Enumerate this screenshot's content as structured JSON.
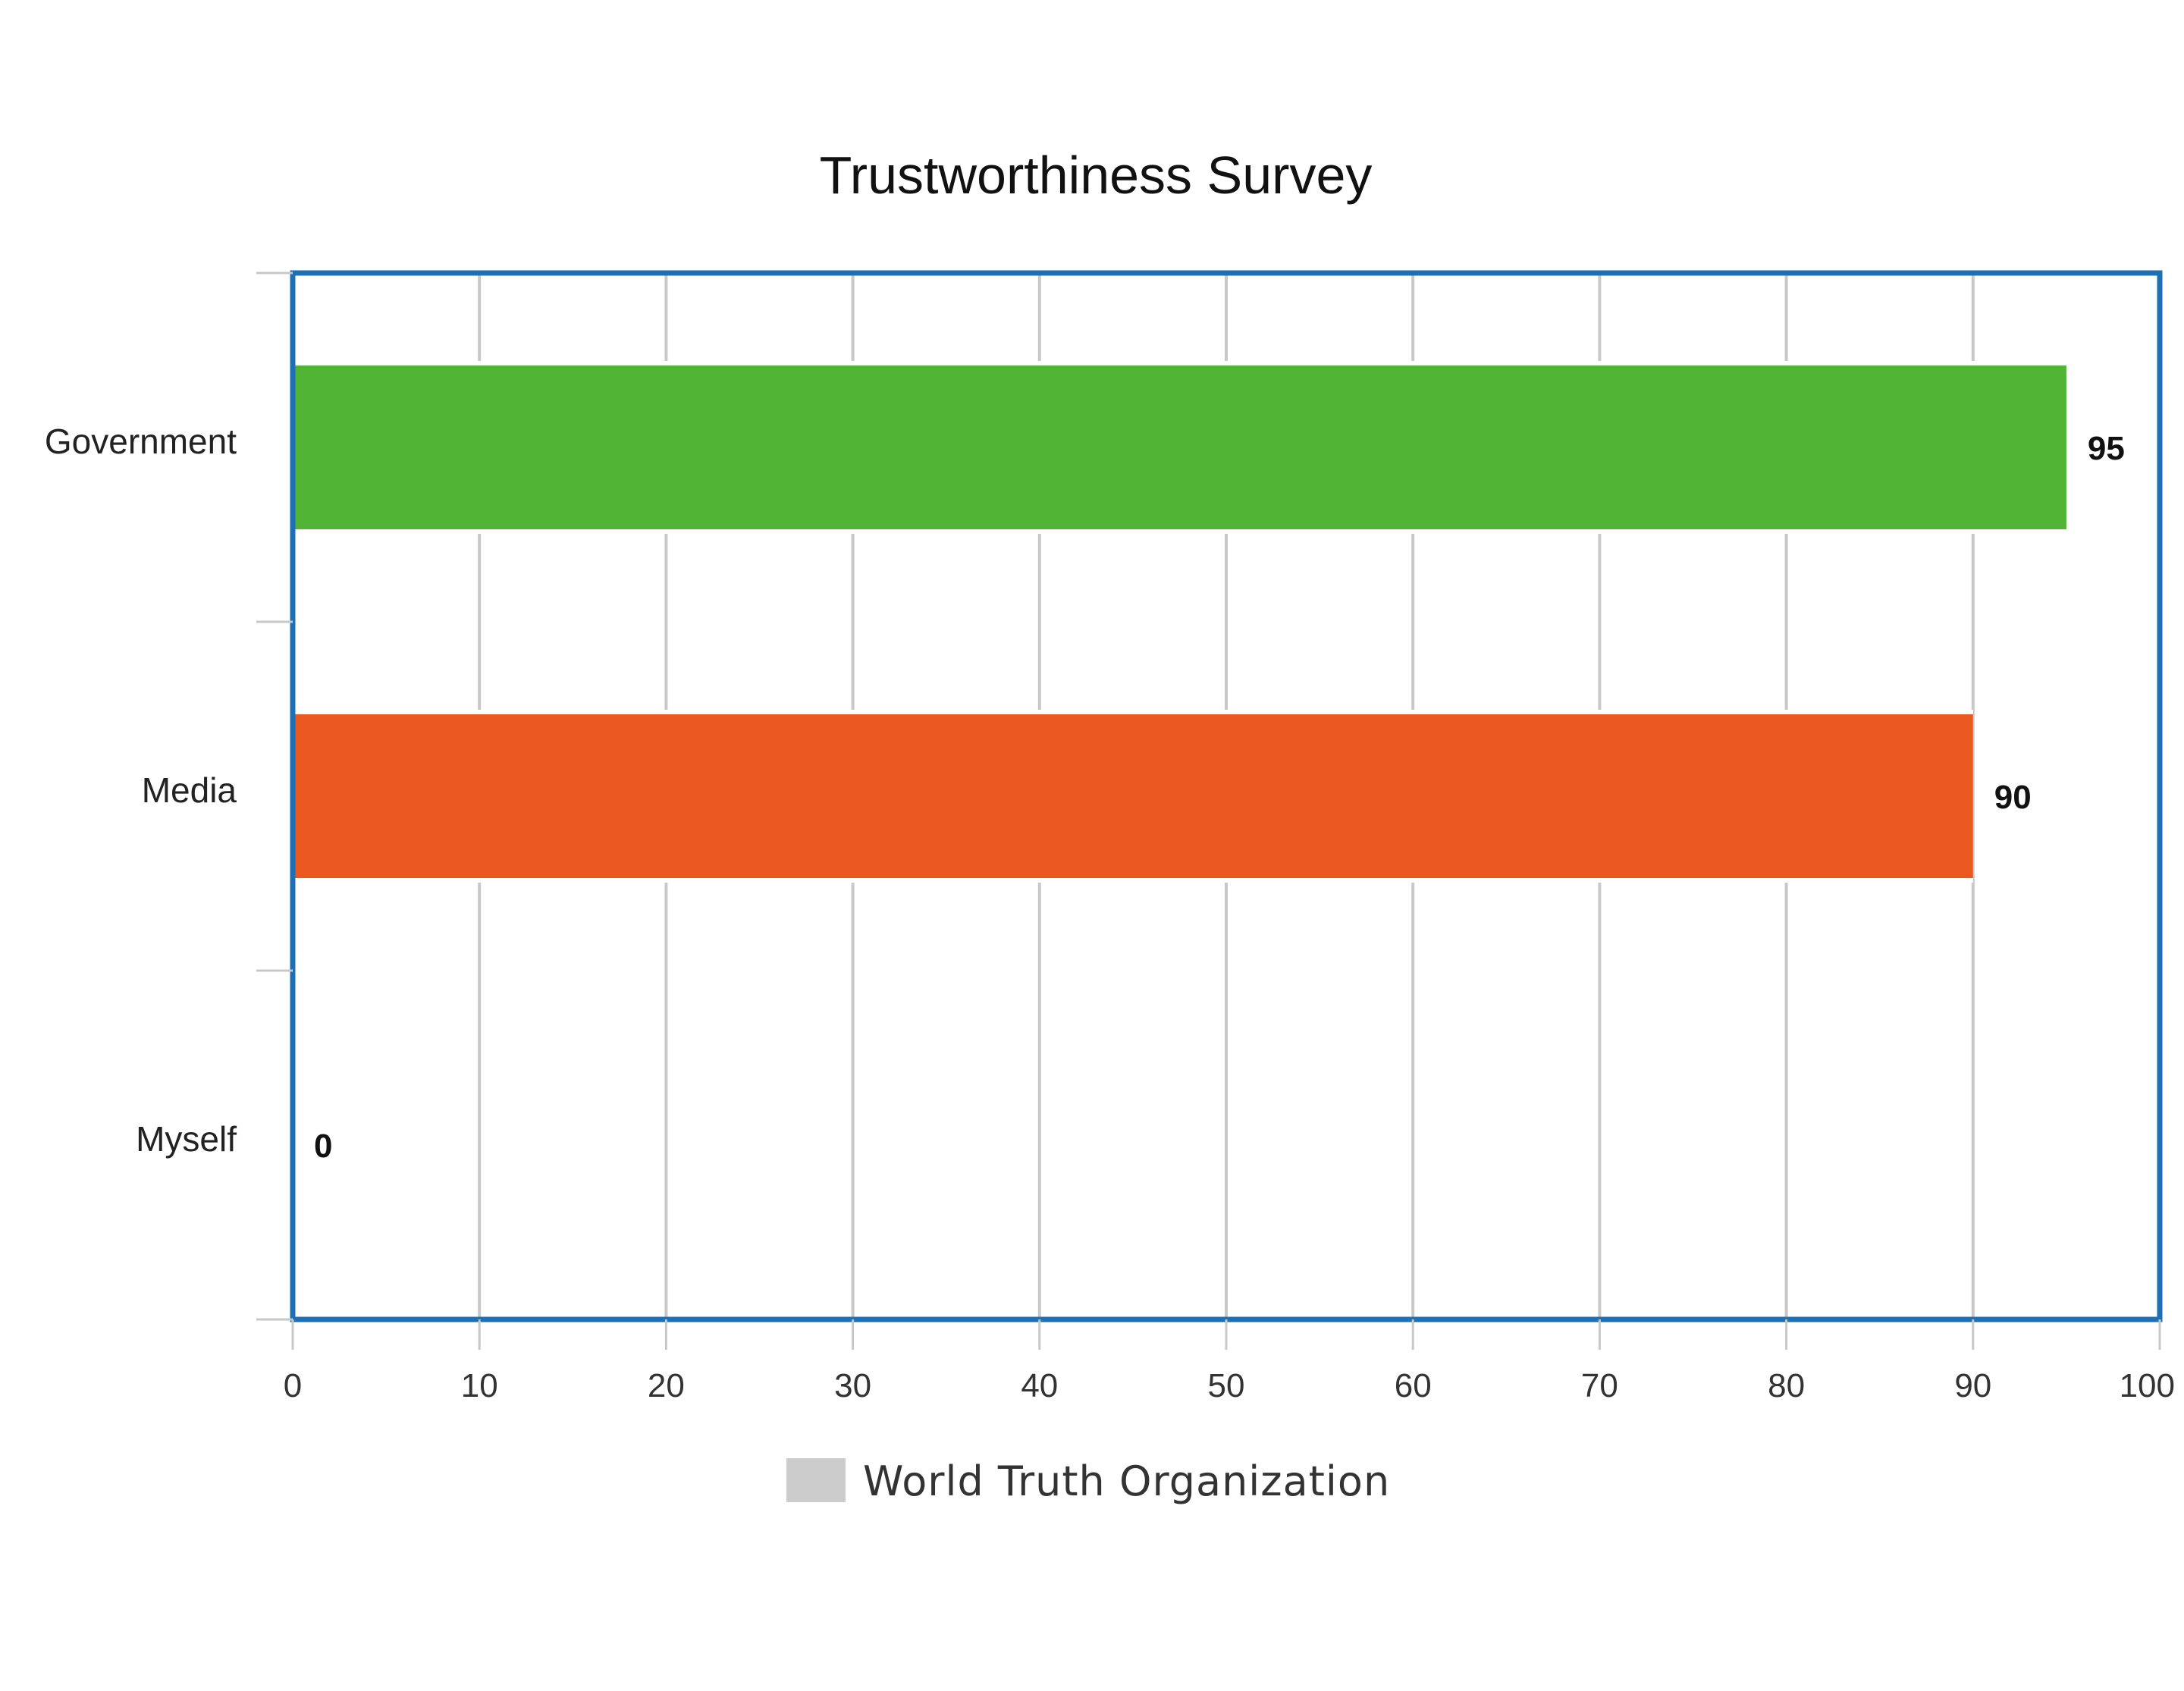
{
  "chart_data": {
    "type": "bar",
    "orientation": "horizontal",
    "title": "Trustworthiness Survey",
    "categories": [
      "Government",
      "Media",
      "Myself"
    ],
    "series": [
      {
        "name": "World Truth Organization",
        "values": [
          95,
          90,
          0
        ],
        "colors": [
          "#52b435",
          "#ea581f",
          "#cccccc"
        ]
      }
    ],
    "xlim": [
      0,
      100
    ],
    "xticks": [
      0,
      10,
      20,
      30,
      40,
      50,
      60,
      70,
      80,
      90,
      100
    ],
    "xlabel": "",
    "ylabel": "",
    "grid": true,
    "legend": {
      "position": "bottom",
      "swatch_color": "#cccccc"
    },
    "frame_color": "#1f6fb5",
    "grid_color": "#c8c8c8"
  }
}
